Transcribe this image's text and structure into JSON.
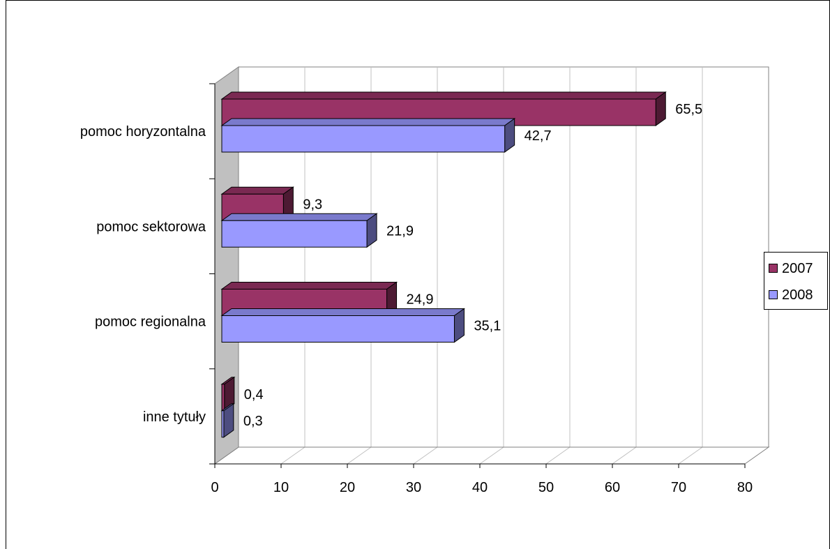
{
  "chart_data": {
    "type": "bar",
    "orientation": "horizontal",
    "style": "3d",
    "categories": [
      "pomoc horyzontalna",
      "pomoc sektorowa",
      "pomoc regionalna",
      "inne tytuły"
    ],
    "category_labels": [
      "pomoc horyzontalna",
      "pomoc sektorowa",
      "pomoc regionalna",
      "inne tytuły"
    ],
    "series": [
      {
        "name": "2007",
        "values": [
          65.5,
          9.3,
          24.9,
          0.4
        ],
        "labels": [
          "65,5",
          "9,3",
          "24,9",
          "0,4"
        ],
        "color": "#993366"
      },
      {
        "name": "2008",
        "values": [
          42.7,
          21.9,
          35.1,
          0.3
        ],
        "labels": [
          "42,7",
          "21,9",
          "35,1",
          "0,3"
        ],
        "color": "#9999ff"
      }
    ],
    "x_ticks": [
      "0",
      "10",
      "20",
      "30",
      "40",
      "50",
      "60",
      "70",
      "80"
    ],
    "xlim": [
      0,
      80
    ],
    "grid": true,
    "legend_position": "right",
    "title": "",
    "xlabel": "",
    "ylabel": ""
  }
}
